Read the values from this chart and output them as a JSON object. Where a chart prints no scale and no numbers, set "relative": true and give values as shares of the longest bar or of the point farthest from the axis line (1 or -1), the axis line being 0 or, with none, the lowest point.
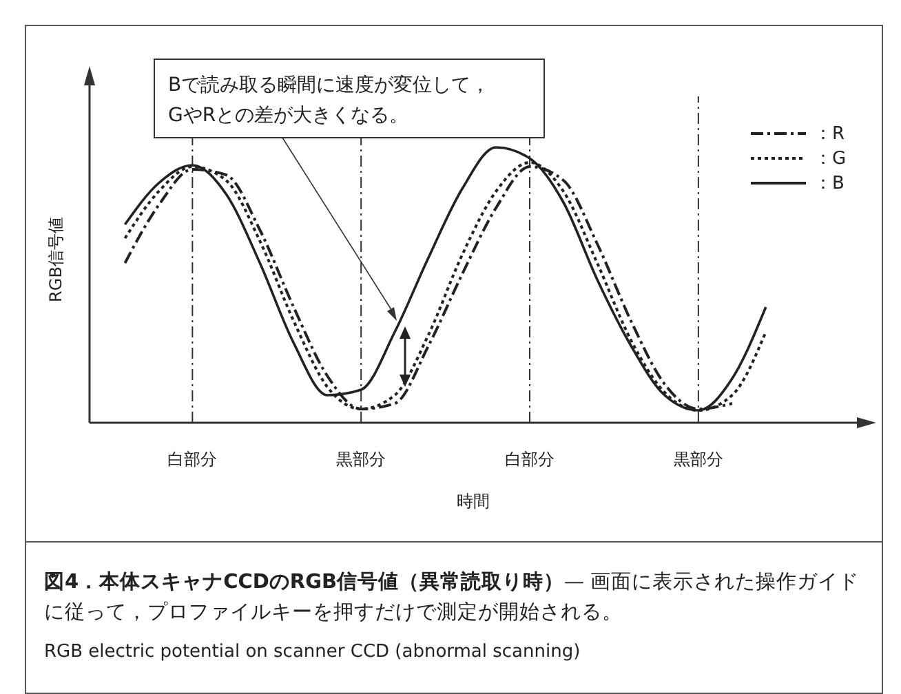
{
  "chart_data": {
    "type": "line",
    "relative": true,
    "title": "図4．本体スキャナCCDのRGB信号値（異常読取り時）",
    "ylabel": "RGB信号値",
    "xlabel": "時間",
    "categories": [
      null,
      null,
      null,
      "白部分",
      null,
      null,
      null,
      null,
      "黒部分",
      null,
      null,
      null,
      null,
      "白部分",
      null,
      null,
      null,
      null,
      "黒部分",
      null,
      null,
      null,
      null
    ],
    "grid": "x",
    "series": [
      {
        "name": "：R",
        "color": "#222222",
        "line_style": "dashed",
        "values": [
          null,
          0.58,
          0.79,
          0.92,
          0.9,
          0.7,
          0.42,
          0.17,
          0.05,
          0.07,
          0.28,
          0.54,
          0.78,
          0.93,
          0.88,
          0.65,
          0.37,
          0.14,
          0.05,
          0.07,
          null,
          null,
          null
        ]
      },
      {
        "name": "：G",
        "color": "#222222",
        "line_style": "dotted",
        "values": [
          null,
          0.67,
          0.84,
          0.93,
          0.88,
          0.66,
          0.37,
          0.13,
          0.05,
          0.1,
          0.32,
          0.61,
          0.84,
          0.945,
          0.84,
          0.58,
          0.3,
          0.11,
          0.045,
          0.1,
          0.33,
          null,
          null
        ]
      },
      {
        "name": "：B",
        "color": "#222222",
        "line_style": "solid",
        "values": [
          null,
          0.72,
          0.87,
          0.935,
          0.83,
          0.58,
          0.29,
          0.1,
          0.12,
          0.33,
          0.6,
          0.85,
          1.0,
          0.96,
          0.8,
          0.52,
          0.28,
          0.1,
          0.045,
          0.16,
          0.42,
          null,
          null
        ]
      }
    ],
    "legend": "top right",
    "annotations": [
      "Bで読み取る瞬間に速度が変位して，\nGやRとの差が大きくなる。",
      "— 画面に表示された操作ガイドに従って，プロファイルキーを押すだけで測定が開始される。",
      "RGB electric potential on scanner CCD (abnormal scanning)"
    ]
  }
}
